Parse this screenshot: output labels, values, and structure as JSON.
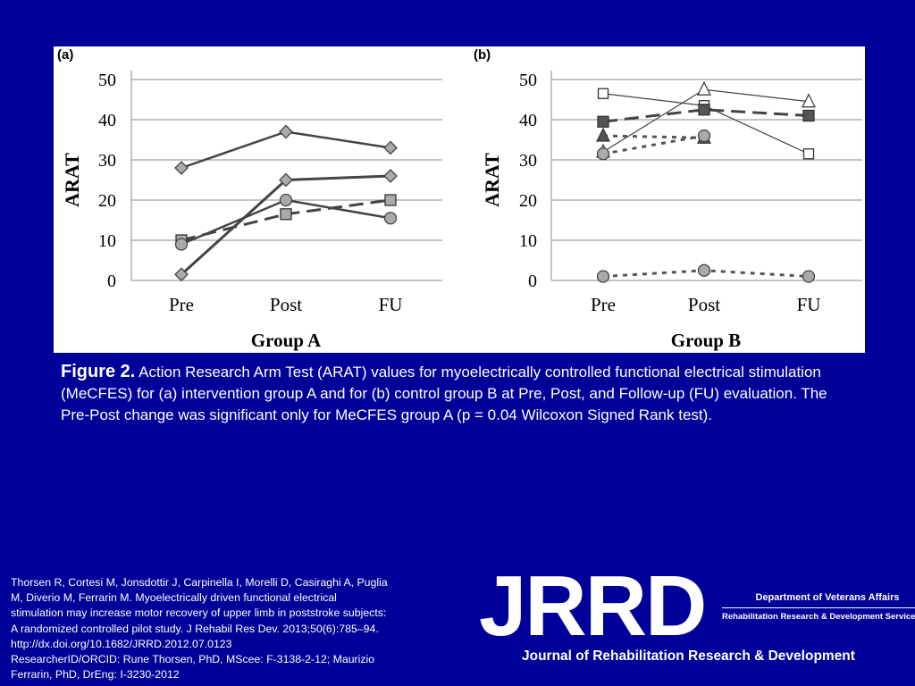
{
  "chart_data": [
    {
      "type": "line",
      "panel_label": "(a)",
      "title": "",
      "xlabel": "Group A",
      "ylabel": "ARAT",
      "categories": [
        "Pre",
        "Post",
        "FU"
      ],
      "yticks": [
        "0",
        "10",
        "20",
        "30",
        "40",
        "50"
      ],
      "ylim": [
        0,
        55
      ],
      "grid": true,
      "series": [
        {
          "values": [
            28,
            37,
            33
          ],
          "marker": "diamond",
          "line": "solid",
          "stroke_width": 2.5
        },
        {
          "values": [
            1.5,
            25,
            26
          ],
          "marker": "diamond",
          "line": "solid",
          "stroke_width": 3
        },
        {
          "values": [
            10,
            16.5,
            20
          ],
          "marker": "square",
          "line": "dashed",
          "stroke_width": 3
        },
        {
          "values": [
            9,
            20,
            15.5
          ],
          "marker": "circle",
          "line": "solid",
          "stroke_width": 2.5
        }
      ]
    },
    {
      "type": "line",
      "panel_label": "(b)",
      "title": "",
      "xlabel": "Group B",
      "ylabel": "ARAT",
      "categories": [
        "Pre",
        "Post",
        "FU"
      ],
      "yticks": [
        "0",
        "10",
        "20",
        "30",
        "40",
        "50"
      ],
      "ylim": [
        0,
        55
      ],
      "grid": true,
      "series": [
        {
          "values": [
            46.5,
            43.5,
            31.5
          ],
          "marker": "square-open",
          "line": "solid",
          "stroke_width": 1.2
        },
        {
          "values": [
            32,
            47.5,
            44.5
          ],
          "marker": "triangle-open",
          "line": "solid",
          "stroke_width": 1.2
        },
        {
          "values": [
            39.5,
            42.5,
            41
          ],
          "marker": "square",
          "line": "dashed",
          "stroke_width": 3
        },
        {
          "values": [
            36,
            35.5,
            null
          ],
          "marker": "triangle",
          "line": "dotted",
          "stroke_width": 3
        },
        {
          "values": [
            31.5,
            36,
            null
          ],
          "marker": "circle",
          "line": "dotted",
          "stroke_width": 3
        },
        {
          "values": [
            1,
            2.5,
            1
          ],
          "marker": "circle",
          "line": "dotted",
          "stroke_width": 3
        }
      ]
    }
  ],
  "caption": {
    "label": "Figure 2.",
    "text": " Action Research Arm Test (ARAT) values for myoelectrically controlled functional electrical stimulation (MeCFES) for (a) intervention group A and for (b) control group B at Pre, Post, and Follow-up (FU) evaluation. The Pre-Post change was significant only for MeCFES group A (p = 0.04 Wilcoxon Signed Rank test)."
  },
  "citation": {
    "lines": [
      "Thorsen R, Cortesi M, Jonsdottir J, Carpinella I, Morelli D, Casiraghi A, Puglia",
      "M, Diverio M, Ferrarin M. Myoelectrically driven functional electrical",
      "stimulation may increase motor recovery of upper limb in poststroke subjects:",
      "A randomized controlled pilot study. J Rehabil Res Dev. 2013;50(6):785–94.",
      "http://dx.doi.org/10.1682/JRRD.2012.07.0123",
      "ResearcherID/ORCID: Rune Thorsen, PhD, MScee: F-3138-2-12; Maurizio",
      "Ferrarin, PhD, DrEng: I-3230-2012"
    ]
  },
  "logo": {
    "wordmark": "JRRD",
    "department": "Department of Veterans Affairs",
    "service": "Rehabilitation Research & Development Service",
    "journal": "Journal of Rehabilitation Research & Development"
  },
  "colors": {
    "background": "#000099",
    "panel": "#ffffff",
    "line": "#444444",
    "marker_fill": "#aaaaaa",
    "marker_fill_dark": "#555555",
    "grid": "#888888"
  }
}
